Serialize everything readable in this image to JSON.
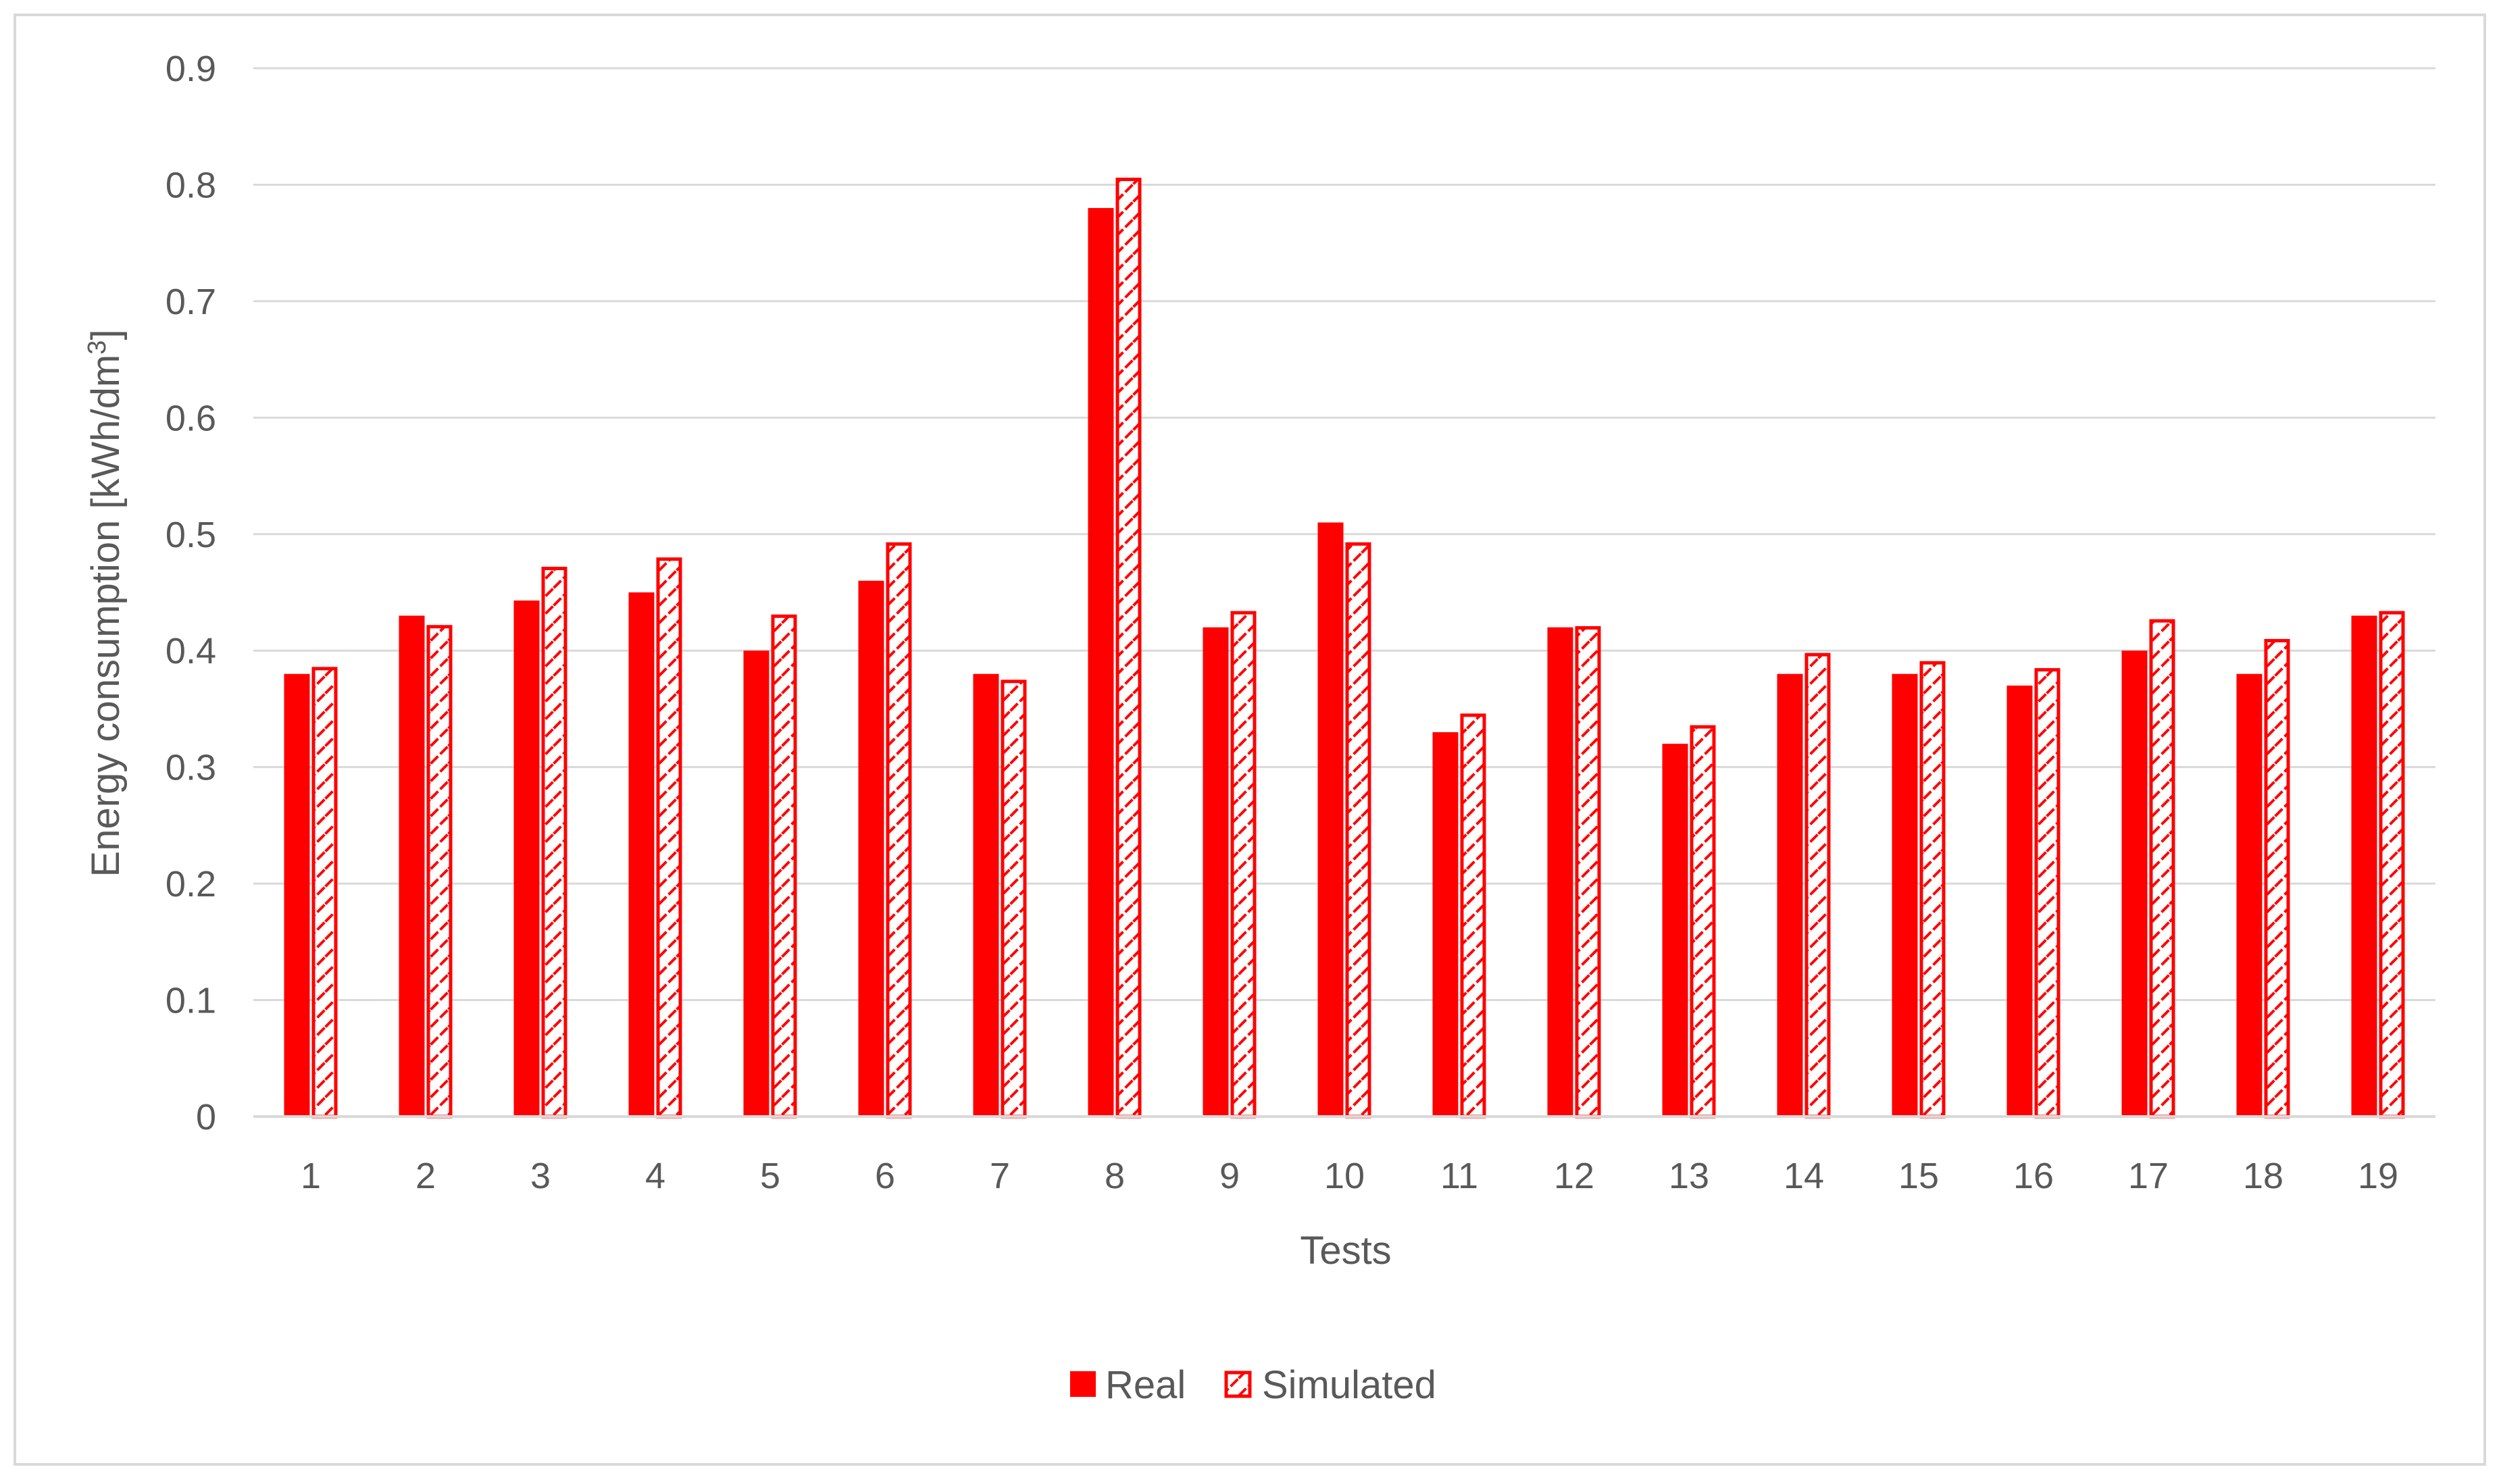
{
  "chart_data": {
    "type": "bar",
    "title": "",
    "xlabel": "Tests",
    "ylabel": "Energy consumption [kWh/dm",
    "ylabel_sup": "3",
    "ylabel_end": "]",
    "ylim": [
      0,
      0.9
    ],
    "yticks": [
      "0",
      "0.1",
      "0.2",
      "0.3",
      "0.4",
      "0.5",
      "0.6",
      "0.7",
      "0.8",
      "0.9"
    ],
    "categories": [
      "1",
      "2",
      "3",
      "4",
      "5",
      "6",
      "7",
      "8",
      "9",
      "10",
      "11",
      "12",
      "13",
      "14",
      "15",
      "16",
      "17",
      "18",
      "19"
    ],
    "series": [
      {
        "name": "Real",
        "style": "solid",
        "color": "#ff0000",
        "values": [
          0.38,
          0.43,
          0.443,
          0.45,
          0.4,
          0.46,
          0.38,
          0.78,
          0.42,
          0.51,
          0.33,
          0.42,
          0.32,
          0.38,
          0.38,
          0.37,
          0.4,
          0.38,
          0.43
        ]
      },
      {
        "name": "Simulated",
        "style": "hatched",
        "color": "#ff0000",
        "values": [
          0.386,
          0.422,
          0.472,
          0.48,
          0.431,
          0.493,
          0.375,
          0.806,
          0.434,
          0.493,
          0.346,
          0.421,
          0.336,
          0.398,
          0.391,
          0.385,
          0.427,
          0.41,
          0.434
        ]
      }
    ],
    "grid": true,
    "legend_position": "bottom-center"
  }
}
